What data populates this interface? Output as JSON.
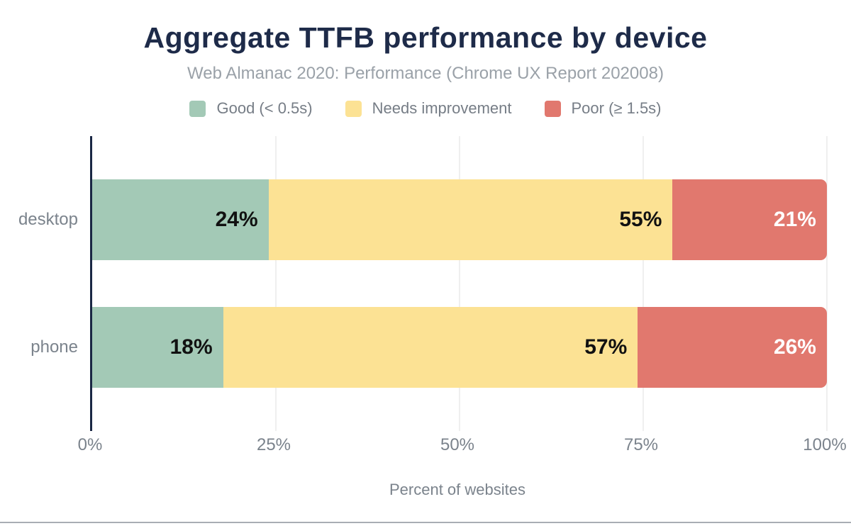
{
  "chart_data": {
    "type": "bar",
    "orientation": "horizontal",
    "stacked": true,
    "title": "Aggregate TTFB performance by device",
    "subtitle": "Web Almanac 2020: Performance (Chrome UX Report 202008)",
    "categories": [
      "desktop",
      "phone"
    ],
    "series": [
      {
        "name": "Good (< 0.5s)",
        "color": "#a3c9b6",
        "label_color": "#111111",
        "values": [
          24,
          18
        ]
      },
      {
        "name": "Needs improvement",
        "color": "#fce294",
        "label_color": "#111111",
        "values": [
          55,
          57
        ]
      },
      {
        "name": "Poor (≥ 1.5s)",
        "color": "#e1786e",
        "label_color": "#ffffff",
        "values": [
          21,
          26
        ]
      }
    ],
    "value_suffix": "%",
    "xlabel": "Percent of websites",
    "x_ticks": [
      "0%",
      "25%",
      "50%",
      "75%",
      "100%"
    ],
    "xlim": [
      0,
      100
    ],
    "grid": "vertical",
    "legend_position": "top"
  },
  "colors": {
    "title": "#1e2b49",
    "subtitle": "#9aa1a8",
    "axis_line": "#1a2744",
    "gridline": "#efefef",
    "tick_text": "#7b838c",
    "legend_text": "#767d86",
    "background": "#ffffff",
    "bottom_border": "#a9adb4"
  }
}
